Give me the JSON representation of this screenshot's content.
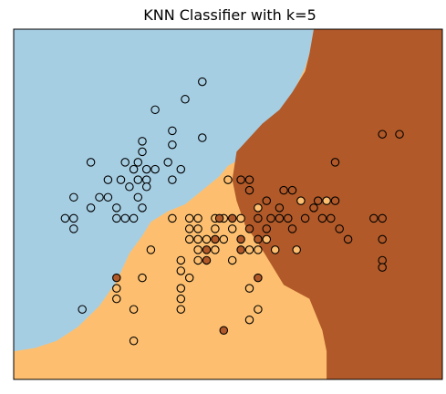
{
  "chart_data": {
    "type": "scatter",
    "title": "KNN Classifier with k=5",
    "xlabel": "",
    "ylabel": "",
    "xlim": [
      0,
      100
    ],
    "ylim": [
      0,
      100
    ],
    "ticks": "none",
    "grid": false,
    "legend": "none",
    "classes": [
      {
        "name": "0",
        "color": "#a6cee3"
      },
      {
        "name": "1",
        "color": "#fdbf6f"
      },
      {
        "name": "2",
        "color": "#b15928"
      }
    ],
    "decision_boundaries": {
      "region_0_upper_boundary": [
        [
          0,
          8
        ],
        [
          5,
          9
        ],
        [
          10,
          11
        ],
        [
          15,
          15
        ],
        [
          20,
          21
        ],
        [
          24,
          28
        ],
        [
          27,
          36
        ],
        [
          30,
          41
        ],
        [
          32,
          45
        ],
        [
          36,
          48
        ],
        [
          40,
          50
        ],
        [
          44,
          54
        ],
        [
          48,
          58
        ],
        [
          50,
          61
        ],
        [
          53,
          63
        ],
        [
          57,
          67
        ],
        [
          60,
          71
        ],
        [
          63,
          75
        ],
        [
          65,
          80
        ],
        [
          66,
          84
        ],
        [
          68,
          89
        ],
        [
          69,
          93
        ],
        [
          70,
          100
        ]
      ],
      "region_2_left_boundary": [
        [
          70,
          100
        ],
        [
          69,
          93
        ],
        [
          68,
          88
        ],
        [
          65,
          82
        ],
        [
          62,
          77
        ],
        [
          58,
          73
        ],
        [
          55,
          69
        ],
        [
          52,
          65
        ],
        [
          51,
          57
        ],
        [
          52,
          51
        ],
        [
          54,
          44
        ],
        [
          57,
          39
        ],
        [
          60,
          33
        ],
        [
          63,
          27
        ],
        [
          66,
          25
        ],
        [
          69,
          23
        ],
        [
          70,
          20
        ],
        [
          72,
          14
        ],
        [
          73,
          8
        ],
        [
          73,
          0
        ]
      ]
    },
    "points": [
      {
        "x": 44,
        "y": 85,
        "c": 0
      },
      {
        "x": 40,
        "y": 80,
        "c": 0
      },
      {
        "x": 33,
        "y": 77,
        "c": 0
      },
      {
        "x": 37,
        "y": 71,
        "c": 0
      },
      {
        "x": 44,
        "y": 69,
        "c": 0
      },
      {
        "x": 30,
        "y": 68,
        "c": 0
      },
      {
        "x": 37,
        "y": 67,
        "c": 0
      },
      {
        "x": 30,
        "y": 65,
        "c": 0
      },
      {
        "x": 18,
        "y": 62,
        "c": 0
      },
      {
        "x": 26,
        "y": 62,
        "c": 0
      },
      {
        "x": 29,
        "y": 62,
        "c": 0
      },
      {
        "x": 36,
        "y": 62,
        "c": 0
      },
      {
        "x": 28,
        "y": 60,
        "c": 0
      },
      {
        "x": 31,
        "y": 60,
        "c": 0
      },
      {
        "x": 33,
        "y": 60,
        "c": 0
      },
      {
        "x": 39,
        "y": 60,
        "c": 0
      },
      {
        "x": 22,
        "y": 57,
        "c": 0
      },
      {
        "x": 25,
        "y": 57,
        "c": 0
      },
      {
        "x": 29,
        "y": 57,
        "c": 0
      },
      {
        "x": 31,
        "y": 57,
        "c": 0
      },
      {
        "x": 37,
        "y": 57,
        "c": 0
      },
      {
        "x": 27,
        "y": 55,
        "c": 0
      },
      {
        "x": 31,
        "y": 55,
        "c": 0
      },
      {
        "x": 14,
        "y": 52,
        "c": 0
      },
      {
        "x": 20,
        "y": 52,
        "c": 0
      },
      {
        "x": 22,
        "y": 52,
        "c": 0
      },
      {
        "x": 29,
        "y": 52,
        "c": 0
      },
      {
        "x": 18,
        "y": 49,
        "c": 0
      },
      {
        "x": 24,
        "y": 49,
        "c": 0
      },
      {
        "x": 30,
        "y": 49,
        "c": 0
      },
      {
        "x": 12,
        "y": 46,
        "c": 0
      },
      {
        "x": 14,
        "y": 46,
        "c": 0
      },
      {
        "x": 24,
        "y": 46,
        "c": 0
      },
      {
        "x": 26,
        "y": 46,
        "c": 0
      },
      {
        "x": 28,
        "y": 46,
        "c": 0
      },
      {
        "x": 14,
        "y": 43,
        "c": 0
      },
      {
        "x": 16,
        "y": 20,
        "c": 0
      },
      {
        "x": 50,
        "y": 57,
        "c": 1
      },
      {
        "x": 73,
        "y": 51,
        "c": 1
      },
      {
        "x": 37,
        "y": 46,
        "c": 1
      },
      {
        "x": 41,
        "y": 46,
        "c": 1
      },
      {
        "x": 43,
        "y": 46,
        "c": 1
      },
      {
        "x": 47,
        "y": 46,
        "c": 1
      },
      {
        "x": 49,
        "y": 46,
        "c": 1
      },
      {
        "x": 41,
        "y": 43,
        "c": 1
      },
      {
        "x": 43,
        "y": 43,
        "c": 1
      },
      {
        "x": 47,
        "y": 43,
        "c": 1
      },
      {
        "x": 51,
        "y": 43,
        "c": 1
      },
      {
        "x": 41,
        "y": 40,
        "c": 1
      },
      {
        "x": 43,
        "y": 40,
        "c": 1
      },
      {
        "x": 45,
        "y": 40,
        "c": 1
      },
      {
        "x": 32,
        "y": 37,
        "c": 1
      },
      {
        "x": 43,
        "y": 37,
        "c": 1
      },
      {
        "x": 47,
        "y": 37,
        "c": 1
      },
      {
        "x": 39,
        "y": 34,
        "c": 1
      },
      {
        "x": 43,
        "y": 34,
        "c": 1
      },
      {
        "x": 39,
        "y": 31,
        "c": 1
      },
      {
        "x": 30,
        "y": 29,
        "c": 1
      },
      {
        "x": 41,
        "y": 29,
        "c": 1
      },
      {
        "x": 24,
        "y": 26,
        "c": 1
      },
      {
        "x": 39,
        "y": 26,
        "c": 1
      },
      {
        "x": 55,
        "y": 26,
        "c": 1
      },
      {
        "x": 24,
        "y": 23,
        "c": 1
      },
      {
        "x": 39,
        "y": 23,
        "c": 1
      },
      {
        "x": 28,
        "y": 20,
        "c": 1
      },
      {
        "x": 39,
        "y": 20,
        "c": 1
      },
      {
        "x": 57,
        "y": 20,
        "c": 1
      },
      {
        "x": 55,
        "y": 17,
        "c": 1
      },
      {
        "x": 28,
        "y": 11,
        "c": 1
      },
      {
        "x": 49,
        "y": 40,
        "c": 1
      },
      {
        "x": 59,
        "y": 40,
        "c": 1
      },
      {
        "x": 55,
        "y": 37,
        "c": 1
      },
      {
        "x": 57,
        "y": 37,
        "c": 1
      },
      {
        "x": 61,
        "y": 37,
        "c": 1
      },
      {
        "x": 51,
        "y": 34,
        "c": 1
      },
      {
        "x": 53,
        "y": 46,
        "c": 1
      },
      {
        "x": 57,
        "y": 49,
        "c": 1
      },
      {
        "x": 66,
        "y": 37,
        "c": 1
      },
      {
        "x": 67,
        "y": 51,
        "c": 1
      },
      {
        "x": 86,
        "y": 70,
        "c": 2
      },
      {
        "x": 90,
        "y": 70,
        "c": 2
      },
      {
        "x": 75,
        "y": 62,
        "c": 2
      },
      {
        "x": 53,
        "y": 57,
        "c": 2
      },
      {
        "x": 55,
        "y": 57,
        "c": 2
      },
      {
        "x": 55,
        "y": 54,
        "c": 2
      },
      {
        "x": 63,
        "y": 54,
        "c": 2
      },
      {
        "x": 65,
        "y": 54,
        "c": 2
      },
      {
        "x": 71,
        "y": 51,
        "c": 2
      },
      {
        "x": 75,
        "y": 51,
        "c": 2
      },
      {
        "x": 59,
        "y": 51,
        "c": 2
      },
      {
        "x": 62,
        "y": 49,
        "c": 2
      },
      {
        "x": 70,
        "y": 49,
        "c": 2
      },
      {
        "x": 57,
        "y": 46,
        "c": 2
      },
      {
        "x": 60,
        "y": 46,
        "c": 2
      },
      {
        "x": 62,
        "y": 46,
        "c": 2
      },
      {
        "x": 64,
        "y": 46,
        "c": 2
      },
      {
        "x": 68,
        "y": 46,
        "c": 2
      },
      {
        "x": 72,
        "y": 46,
        "c": 2
      },
      {
        "x": 74,
        "y": 46,
        "c": 2
      },
      {
        "x": 84,
        "y": 46,
        "c": 2
      },
      {
        "x": 86,
        "y": 46,
        "c": 2
      },
      {
        "x": 76,
        "y": 43,
        "c": 2
      },
      {
        "x": 48,
        "y": 46,
        "c": 2
      },
      {
        "x": 51,
        "y": 46,
        "c": 2
      },
      {
        "x": 55,
        "y": 43,
        "c": 2
      },
      {
        "x": 59,
        "y": 43,
        "c": 2
      },
      {
        "x": 65,
        "y": 43,
        "c": 2
      },
      {
        "x": 47,
        "y": 40,
        "c": 2
      },
      {
        "x": 53,
        "y": 40,
        "c": 2
      },
      {
        "x": 57,
        "y": 40,
        "c": 2
      },
      {
        "x": 78,
        "y": 40,
        "c": 2
      },
      {
        "x": 86,
        "y": 40,
        "c": 2
      },
      {
        "x": 45,
        "y": 37,
        "c": 2
      },
      {
        "x": 53,
        "y": 37,
        "c": 2
      },
      {
        "x": 45,
        "y": 34,
        "c": 2
      },
      {
        "x": 86,
        "y": 34,
        "c": 2
      },
      {
        "x": 86,
        "y": 32,
        "c": 2
      },
      {
        "x": 24,
        "y": 29,
        "c": 2
      },
      {
        "x": 57,
        "y": 29,
        "c": 2
      },
      {
        "x": 49,
        "y": 14,
        "c": 2
      }
    ]
  }
}
